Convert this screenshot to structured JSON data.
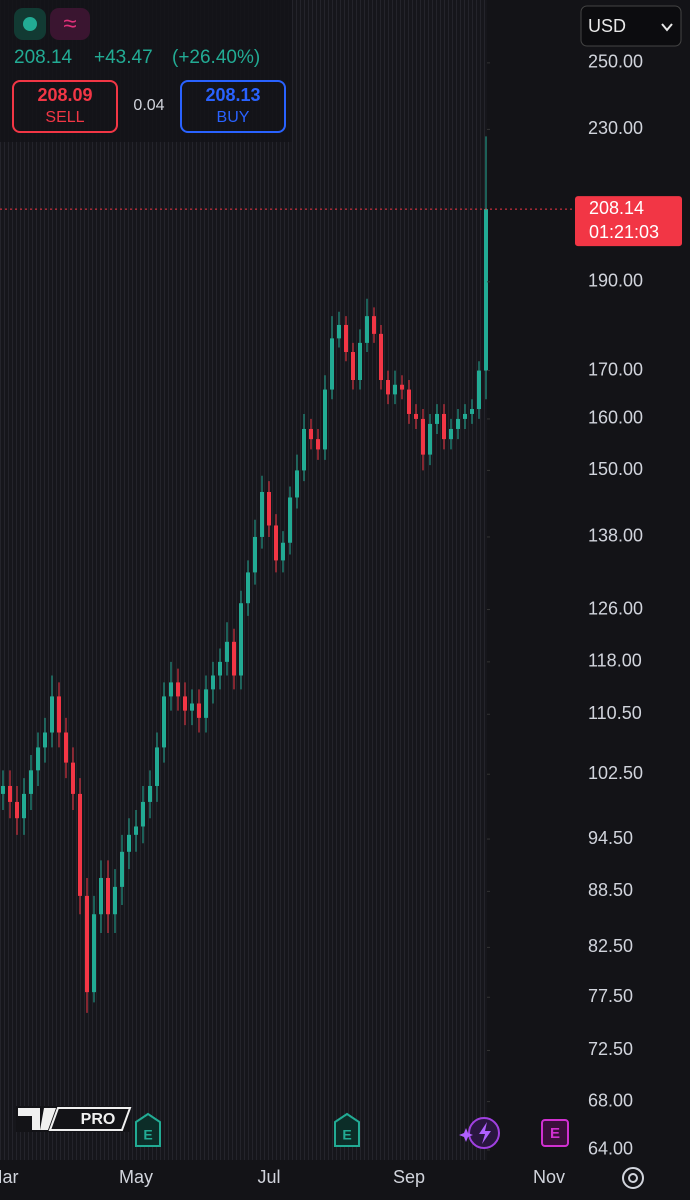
{
  "header": {
    "price": "208.14",
    "change": "+43.47",
    "change_pct": "(+26.40%)",
    "sell": "208.09",
    "sell_label": "SELL",
    "spread": "0.04",
    "buy": "208.13",
    "buy_label": "BUY",
    "currency": "USD",
    "logo": "PRO"
  },
  "chart_data": {
    "type": "candlestick",
    "log_scale": true,
    "up_color": "#22ab94",
    "down_color": "#f23645",
    "categories": [
      "Mar",
      null,
      null,
      null,
      null,
      null,
      null,
      null,
      null,
      null,
      null,
      null,
      null,
      null,
      null,
      null,
      null,
      null,
      null,
      "May",
      null,
      null,
      null,
      null,
      null,
      null,
      null,
      null,
      null,
      null,
      null,
      null,
      null,
      null,
      null,
      null,
      null,
      null,
      "Jul",
      null,
      null,
      null,
      null,
      null,
      null,
      null,
      null,
      null,
      null,
      null,
      null,
      null,
      null,
      null,
      null,
      null,
      null,
      null,
      "Sep",
      null,
      null,
      null,
      null,
      null,
      null,
      null,
      null,
      null,
      null,
      null,
      null,
      null,
      null,
      null,
      null,
      null,
      null,
      null,
      "Nov",
      null
    ],
    "open": [
      100,
      101,
      99,
      97,
      100,
      103,
      106,
      108,
      113,
      108,
      104,
      100,
      88,
      78,
      86,
      90,
      86,
      89,
      93,
      95,
      96,
      99,
      101,
      106,
      113,
      115,
      113,
      111,
      112,
      110,
      114,
      116,
      118,
      121,
      116,
      127,
      132,
      138,
      146,
      140,
      134,
      137,
      145,
      150,
      158,
      156,
      154,
      166,
      177,
      180,
      174,
      168,
      176,
      182,
      178,
      168,
      165,
      167,
      166,
      161,
      160,
      153,
      159,
      161,
      156,
      158,
      160,
      161,
      162,
      170,
      null,
      null,
      null,
      null,
      null,
      null,
      null,
      null,
      null,
      null
    ],
    "high": [
      103,
      103,
      101,
      102,
      105,
      108,
      110,
      116,
      115,
      110,
      106,
      102,
      90,
      88,
      92,
      92,
      91,
      95,
      97,
      98,
      101,
      103,
      108,
      115,
      118,
      117,
      115,
      114,
      114,
      116,
      118,
      120,
      124,
      123,
      129,
      134,
      141,
      149,
      148,
      142,
      139,
      147,
      153,
      161,
      160,
      158,
      169,
      182,
      183,
      182,
      176,
      179,
      186,
      184,
      180,
      170,
      170,
      169,
      168,
      163,
      162,
      161,
      163,
      163,
      160,
      162,
      163,
      164,
      172,
      228,
      null,
      null,
      null,
      null,
      null,
      null,
      null,
      null,
      null,
      null
    ],
    "low": [
      98,
      97,
      95,
      95,
      98,
      101,
      104,
      106,
      106,
      102,
      98,
      86,
      76,
      77,
      84,
      84,
      84,
      87,
      91,
      93,
      94,
      97,
      99,
      104,
      111,
      111,
      109,
      109,
      108,
      108,
      112,
      114,
      116,
      114,
      114,
      125,
      130,
      136,
      138,
      132,
      132,
      135,
      143,
      148,
      154,
      152,
      152,
      164,
      175,
      172,
      166,
      166,
      174,
      176,
      166,
      163,
      163,
      164,
      159,
      158,
      150,
      151,
      157,
      154,
      154,
      156,
      158,
      159,
      160,
      164,
      null,
      null,
      null,
      null,
      null,
      null,
      null,
      null,
      null,
      null
    ],
    "close": [
      101,
      99,
      97,
      100,
      103,
      106,
      108,
      113,
      108,
      104,
      100,
      88,
      78,
      86,
      90,
      86,
      89,
      93,
      95,
      96,
      99,
      101,
      106,
      113,
      115,
      113,
      111,
      112,
      110,
      114,
      116,
      118,
      121,
      116,
      127,
      132,
      138,
      146,
      140,
      134,
      137,
      145,
      150,
      158,
      156,
      154,
      166,
      177,
      180,
      174,
      168,
      176,
      182,
      178,
      168,
      165,
      167,
      166,
      161,
      160,
      153,
      159,
      161,
      156,
      158,
      160,
      161,
      162,
      170,
      208.14,
      null,
      null,
      null,
      null,
      null,
      null,
      null,
      null,
      null,
      null
    ],
    "ylim": [
      63.2,
      270.5
    ],
    "yticks": [
      {
        "value": 250,
        "label": "250.00"
      },
      {
        "value": 230,
        "label": "230.00"
      },
      {
        "value": 190,
        "label": "190.00"
      },
      {
        "value": 170,
        "label": "170.00"
      },
      {
        "value": 160,
        "label": "160.00"
      },
      {
        "value": 150,
        "label": "150.00"
      },
      {
        "value": 138,
        "label": "138.00"
      },
      {
        "value": 126,
        "label": "126.00"
      },
      {
        "value": 118,
        "label": "118.00"
      },
      {
        "value": 110.5,
        "label": "110.50"
      },
      {
        "value": 102.5,
        "label": "102.50"
      },
      {
        "value": 94.5,
        "label": "94.50"
      },
      {
        "value": 88.5,
        "label": "88.50"
      },
      {
        "value": 82.5,
        "label": "82.50"
      },
      {
        "value": 77.5,
        "label": "77.50"
      },
      {
        "value": 72.5,
        "label": "72.50"
      },
      {
        "value": 68,
        "label": "68.00"
      },
      {
        "value": 64,
        "label": "64.00"
      }
    ],
    "last_price": {
      "value": 208.14,
      "label": "208.14",
      "countdown": "01:21:03"
    }
  }
}
